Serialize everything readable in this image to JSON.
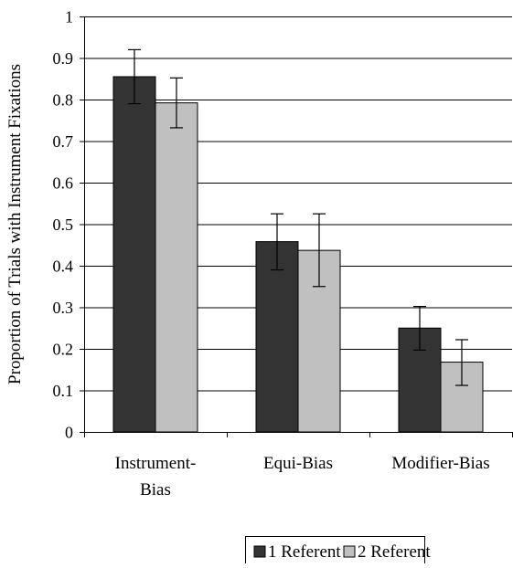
{
  "chart_data": {
    "type": "bar",
    "title": "",
    "xlabel": "",
    "ylabel": "Proportion of Trials with Instrument Fixations",
    "ylim": [
      0,
      1
    ],
    "yticks": [
      "0",
      "0.1",
      "0.2",
      "0.3",
      "0.4",
      "0.5",
      "0.6",
      "0.7",
      "0.8",
      "0.9",
      "1"
    ],
    "categories": [
      [
        "Instrument-",
        "Bias"
      ],
      [
        "Equi-Bias"
      ],
      [
        "Modifier-Bias"
      ]
    ],
    "series": [
      {
        "name": "1 Referent",
        "color": "#333333",
        "values": [
          0.855,
          0.458,
          0.25
        ],
        "err_low": [
          0.79,
          0.39,
          0.197
        ],
        "err_high": [
          0.92,
          0.525,
          0.302
        ]
      },
      {
        "name": "2 Referent",
        "color": "#c0c0c0",
        "values": [
          0.792,
          0.437,
          0.168
        ],
        "err_low": [
          0.732,
          0.35,
          0.112
        ],
        "err_high": [
          0.852,
          0.525,
          0.222
        ]
      }
    ],
    "grid": true,
    "legend_position": "bottom",
    "error_bars": true
  }
}
